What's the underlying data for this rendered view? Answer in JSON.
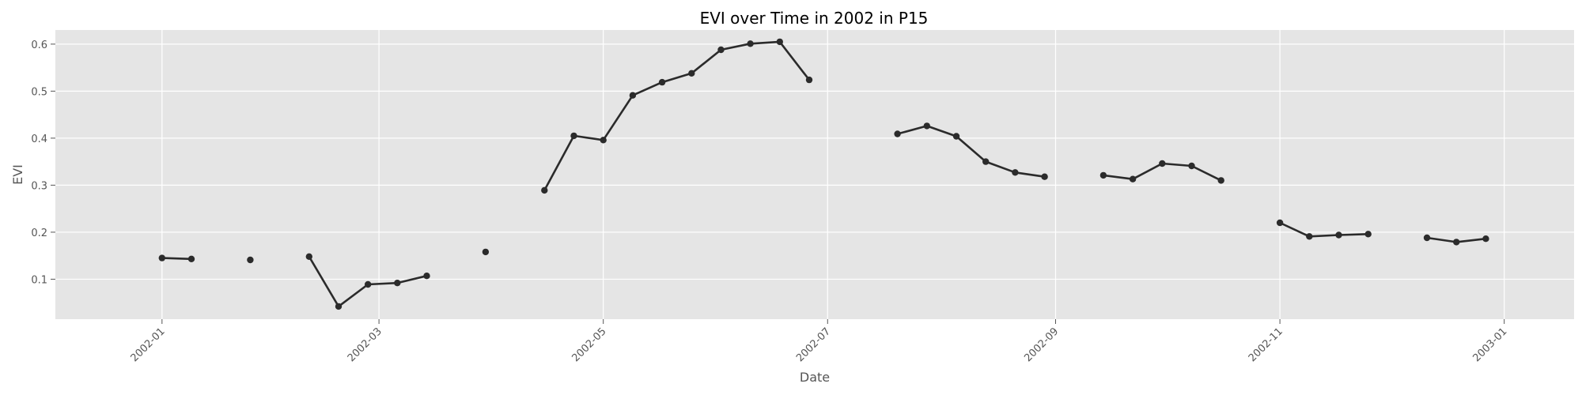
{
  "chart_data": {
    "type": "line",
    "title": "EVI over Time in 2002 in P15",
    "xlabel": "Date",
    "ylabel": "EVI",
    "xlim": [
      "2001-12-03",
      "2003-01-20"
    ],
    "ylim": [
      0.015,
      0.63
    ],
    "x_ticks": [
      "2002-01",
      "2002-03",
      "2002-05",
      "2002-07",
      "2002-09",
      "2002-11",
      "2003-01"
    ],
    "y_ticks": [
      0.1,
      0.2,
      0.3,
      0.4,
      0.5,
      0.6
    ],
    "grid": true,
    "colors": {
      "background": "#e5e5e5",
      "grid": "#ffffff",
      "line": "#2b2b2b"
    },
    "segments": [
      [
        {
          "x": "2002-01-01",
          "y": 0.145
        },
        {
          "x": "2002-01-09",
          "y": 0.143
        }
      ],
      [
        {
          "x": "2002-01-25",
          "y": 0.141
        }
      ],
      [
        {
          "x": "2002-02-10",
          "y": 0.148
        },
        {
          "x": "2002-02-18",
          "y": 0.042
        },
        {
          "x": "2002-02-26",
          "y": 0.089
        },
        {
          "x": "2002-03-06",
          "y": 0.092
        },
        {
          "x": "2002-03-14",
          "y": 0.107
        }
      ],
      [
        {
          "x": "2002-03-30",
          "y": 0.158
        }
      ],
      [
        {
          "x": "2002-04-15",
          "y": 0.289
        },
        {
          "x": "2002-04-23",
          "y": 0.405
        },
        {
          "x": "2002-05-01",
          "y": 0.396
        },
        {
          "x": "2002-05-09",
          "y": 0.491
        },
        {
          "x": "2002-05-17",
          "y": 0.519
        },
        {
          "x": "2002-05-25",
          "y": 0.538
        },
        {
          "x": "2002-06-02",
          "y": 0.588
        },
        {
          "x": "2002-06-10",
          "y": 0.601
        },
        {
          "x": "2002-06-18",
          "y": 0.605
        },
        {
          "x": "2002-06-26",
          "y": 0.524
        }
      ],
      [
        {
          "x": "2002-07-20",
          "y": 0.409
        },
        {
          "x": "2002-07-28",
          "y": 0.426
        },
        {
          "x": "2002-08-05",
          "y": 0.404
        },
        {
          "x": "2002-08-13",
          "y": 0.35
        },
        {
          "x": "2002-08-21",
          "y": 0.327
        },
        {
          "x": "2002-08-29",
          "y": 0.318
        }
      ],
      [
        {
          "x": "2002-09-14",
          "y": 0.321
        },
        {
          "x": "2002-09-22",
          "y": 0.313
        },
        {
          "x": "2002-09-30",
          "y": 0.346
        },
        {
          "x": "2002-10-08",
          "y": 0.341
        },
        {
          "x": "2002-10-16",
          "y": 0.31
        }
      ],
      [
        {
          "x": "2002-11-01",
          "y": 0.22
        },
        {
          "x": "2002-11-09",
          "y": 0.191
        },
        {
          "x": "2002-11-17",
          "y": 0.194
        },
        {
          "x": "2002-11-25",
          "y": 0.196
        }
      ],
      [
        {
          "x": "2002-12-11",
          "y": 0.188
        },
        {
          "x": "2002-12-19",
          "y": 0.179
        },
        {
          "x": "2002-12-27",
          "y": 0.186
        }
      ]
    ]
  }
}
